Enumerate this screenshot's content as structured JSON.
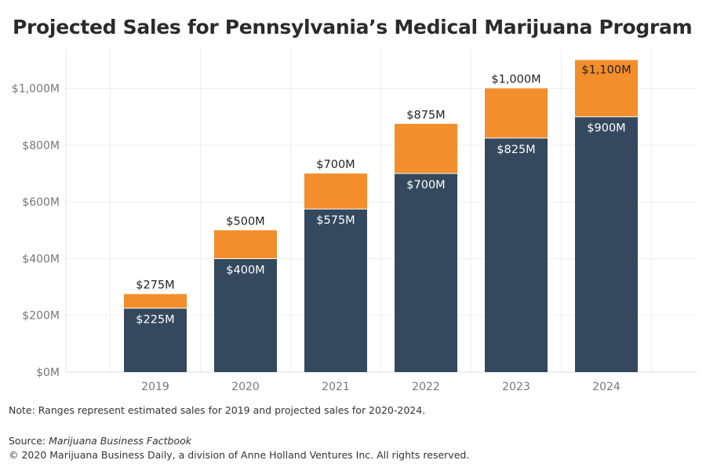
{
  "title": "Projected Sales for Pennsylvania’s Medical Marijuana Program",
  "note": "Note: Ranges represent estimated sales for 2019 and projected sales for 2020-2024.",
  "source_label": "Source: ",
  "source_name": "Marijuana Business Factbook",
  "copyright": "© 2020 Marijuana Business Daily, a division of Anne Holland Ventures Inc. All rights reserved.",
  "colors": {
    "low": "#34495e",
    "high": "#f28e2b",
    "grid": "#eeeeee",
    "axis_text": "#777777"
  },
  "chart_data": {
    "type": "bar",
    "stacked": true,
    "categories": [
      "2019",
      "2020",
      "2021",
      "2022",
      "2023",
      "2024"
    ],
    "series": [
      {
        "values": [
          225,
          400,
          575,
          700,
          825,
          900
        ],
        "labels": [
          "$225M",
          "$400M",
          "$575M",
          "$700M",
          "$825M",
          "$900M"
        ]
      },
      {
        "values": [
          50,
          100,
          125,
          175,
          175,
          200
        ],
        "labels": [
          "$275M",
          "$500M",
          "$700M",
          "$875M",
          "$1,000M",
          "$1,100M"
        ]
      }
    ],
    "totals": [
      275,
      500,
      700,
      875,
      1000,
      1100
    ],
    "yticks": [
      0,
      200,
      400,
      600,
      800,
      1000
    ],
    "ytick_labels": [
      "$0M",
      "$200M",
      "$400M",
      "$600M",
      "$800M",
      "$1,000M"
    ],
    "ylim": [
      0,
      1140
    ],
    "grid": true,
    "xlabel": "",
    "ylabel": ""
  }
}
